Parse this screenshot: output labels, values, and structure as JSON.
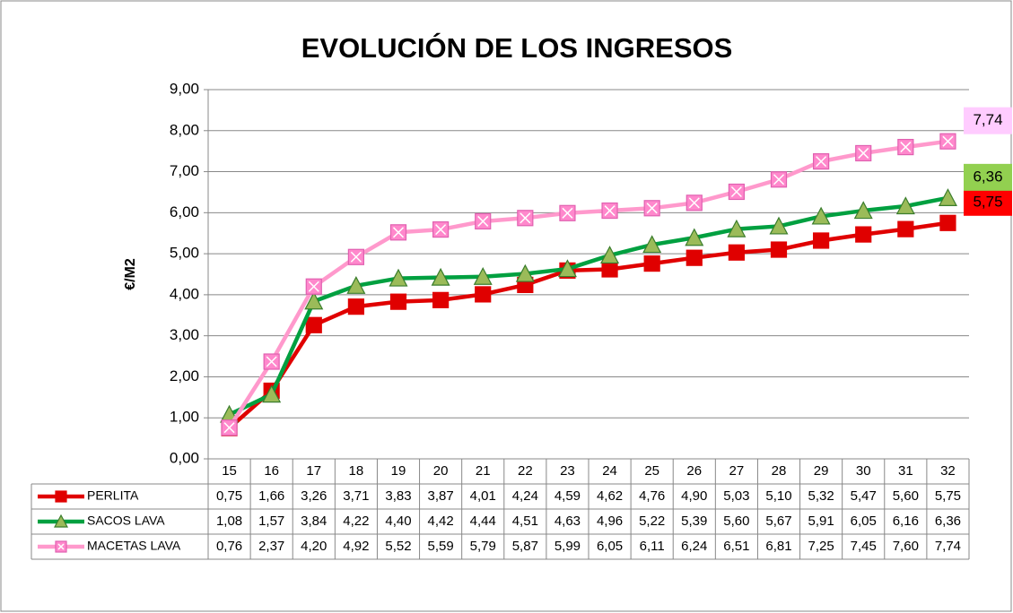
{
  "chart_data": {
    "type": "line",
    "title": "EVOLUCIÓN DE LOS INGRESOS",
    "y_label": "€/M2",
    "categories": [
      "15",
      "16",
      "17",
      "18",
      "19",
      "20",
      "21",
      "22",
      "23",
      "24",
      "25",
      "26",
      "27",
      "28",
      "29",
      "30",
      "31",
      "32"
    ],
    "ylim": [
      0,
      9
    ],
    "yticks": [
      {
        "value": 0,
        "label": "0,00"
      },
      {
        "value": 1,
        "label": "1,00"
      },
      {
        "value": 2,
        "label": "2,00"
      },
      {
        "value": 3,
        "label": "3,00"
      },
      {
        "value": 4,
        "label": "4,00"
      },
      {
        "value": 5,
        "label": "5,00"
      },
      {
        "value": 6,
        "label": "6,00"
      },
      {
        "value": 7,
        "label": "7,00"
      },
      {
        "value": 8,
        "label": "8,00"
      },
      {
        "value": 9,
        "label": "9,00"
      }
    ],
    "grid": true,
    "series": [
      {
        "name": "PERLITA",
        "color": "#e00000",
        "marker": "square",
        "marker_fill": "#e00000",
        "values": [
          0.75,
          1.66,
          3.26,
          3.71,
          3.83,
          3.87,
          4.01,
          4.24,
          4.59,
          4.62,
          4.76,
          4.9,
          5.03,
          5.1,
          5.32,
          5.47,
          5.6,
          5.75
        ],
        "value_labels": [
          "0,75",
          "1,66",
          "3,26",
          "3,71",
          "3,83",
          "3,87",
          "4,01",
          "4,24",
          "4,59",
          "4,62",
          "4,76",
          "4,90",
          "5,03",
          "5,10",
          "5,32",
          "5,47",
          "5,60",
          "5,75"
        ]
      },
      {
        "name": "SACOS LAVA",
        "color": "#00a040",
        "marker": "triangle",
        "marker_fill": "#9bbb59",
        "values": [
          1.08,
          1.57,
          3.84,
          4.22,
          4.4,
          4.42,
          4.44,
          4.51,
          4.63,
          4.96,
          5.22,
          5.39,
          5.6,
          5.67,
          5.91,
          6.05,
          6.16,
          6.36
        ],
        "value_labels": [
          "1,08",
          "1,57",
          "3,84",
          "4,22",
          "4,40",
          "4,42",
          "4,44",
          "4,51",
          "4,63",
          "4,96",
          "5,22",
          "5,39",
          "5,60",
          "5,67",
          "5,91",
          "6,05",
          "6,16",
          "6,36"
        ]
      },
      {
        "name": "MACETAS LAVA",
        "color": "#ff99cc",
        "marker": "xsquare",
        "marker_fill": "#ff88cc",
        "values": [
          0.76,
          2.37,
          4.2,
          4.92,
          5.52,
          5.59,
          5.79,
          5.87,
          5.99,
          6.05,
          6.11,
          6.24,
          6.51,
          6.81,
          7.25,
          7.45,
          7.6,
          7.74
        ],
        "value_labels": [
          "0,76",
          "2,37",
          "4,20",
          "4,92",
          "5,52",
          "5,59",
          "5,79",
          "5,87",
          "5,99",
          "6,05",
          "6,11",
          "6,24",
          "6,51",
          "6,81",
          "7,25",
          "7,45",
          "7,60",
          "7,74"
        ]
      }
    ],
    "end_label_colors": [
      "#ff0000",
      "#92d050",
      "#ffccff"
    ]
  }
}
